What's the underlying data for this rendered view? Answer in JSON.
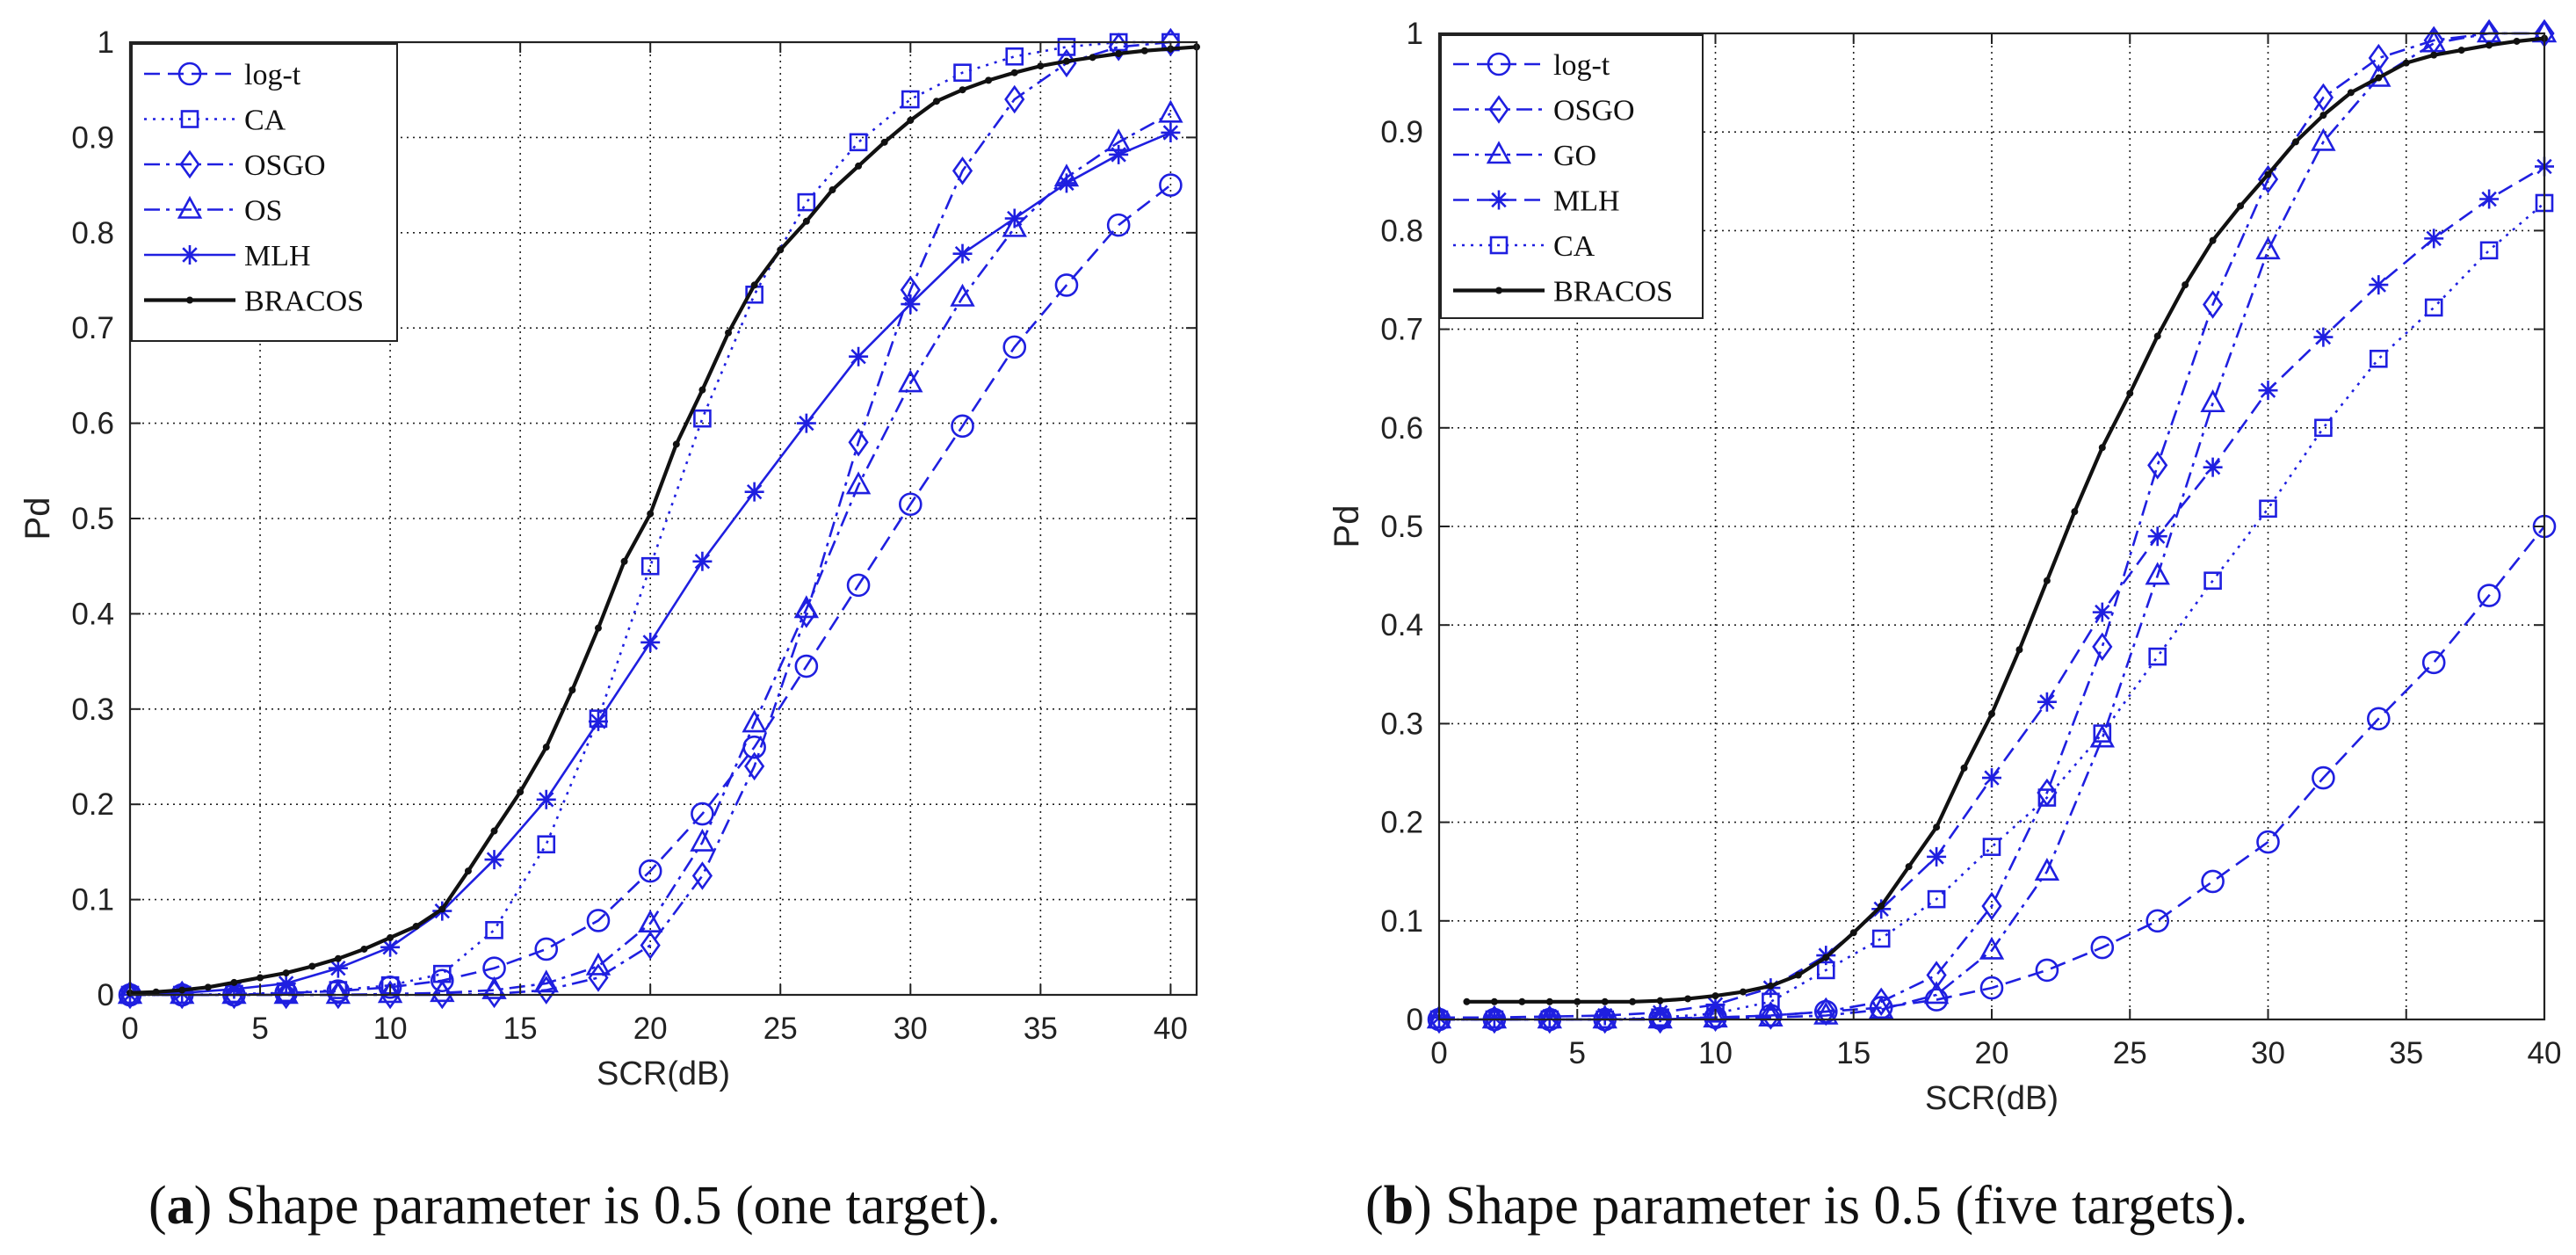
{
  "chart_data": [
    {
      "type": "line",
      "caption": {
        "label": "a",
        "text": " Shape parameter is 0.5 (one target)."
      },
      "xlabel": "SCR(dB)",
      "ylabel": "Pd",
      "xlim": [
        0,
        41
      ],
      "ylim": [
        0,
        1
      ],
      "xticks": [
        0,
        5,
        10,
        15,
        20,
        25,
        30,
        35,
        40
      ],
      "yticks": [
        0,
        0.1,
        0.2,
        0.3,
        0.4,
        0.5,
        0.6,
        0.7,
        0.8,
        0.9,
        1
      ],
      "grid": true,
      "legend_position": "top-left",
      "series": [
        {
          "name": "log-t",
          "marker": "circle",
          "dash": "dashed",
          "color": "#1f1fe0",
          "x": [
            0,
            2,
            4,
            6,
            8,
            10,
            12,
            14,
            16,
            18,
            20,
            22,
            24,
            26,
            28,
            30,
            32,
            34,
            36,
            38,
            40
          ],
          "y": [
            0,
            0,
            0,
            0.002,
            0.004,
            0.008,
            0.015,
            0.028,
            0.048,
            0.078,
            0.13,
            0.19,
            0.26,
            0.345,
            0.43,
            0.515,
            0.597,
            0.68,
            0.745,
            0.808,
            0.85
          ]
        },
        {
          "name": "CA",
          "marker": "square",
          "dash": "dotted",
          "color": "#1f1fe0",
          "x": [
            0,
            2,
            4,
            6,
            8,
            10,
            12,
            14,
            16,
            18,
            20,
            22,
            24,
            26,
            28,
            30,
            32,
            34,
            36,
            38,
            40
          ],
          "y": [
            0,
            0,
            0.001,
            0.002,
            0.005,
            0.01,
            0.022,
            0.068,
            0.158,
            0.29,
            0.45,
            0.605,
            0.735,
            0.832,
            0.895,
            0.94,
            0.968,
            0.985,
            0.995,
            1,
            1
          ]
        },
        {
          "name": "OSGO",
          "marker": "diamond",
          "dash": "dashdot",
          "color": "#1f1fe0",
          "x": [
            0,
            2,
            4,
            6,
            8,
            10,
            12,
            14,
            16,
            18,
            20,
            22,
            24,
            26,
            28,
            30,
            32,
            34,
            36,
            38,
            40
          ],
          "y": [
            0,
            0,
            0,
            0,
            0,
            0,
            0,
            0.001,
            0.005,
            0.018,
            0.052,
            0.125,
            0.24,
            0.4,
            0.58,
            0.74,
            0.865,
            0.94,
            0.978,
            0.995,
            1
          ]
        },
        {
          "name": "OS",
          "marker": "triangle",
          "dash": "dashdot",
          "color": "#1f1fe0",
          "x": [
            0,
            2,
            4,
            6,
            8,
            10,
            12,
            14,
            16,
            18,
            20,
            22,
            24,
            26,
            28,
            30,
            32,
            34,
            36,
            38,
            40
          ],
          "y": [
            0,
            0,
            0,
            0,
            0,
            0.001,
            0.002,
            0.005,
            0.012,
            0.03,
            0.075,
            0.16,
            0.285,
            0.405,
            0.535,
            0.642,
            0.732,
            0.805,
            0.858,
            0.895,
            0.925
          ]
        },
        {
          "name": "MLH",
          "marker": "star",
          "dash": "solid",
          "color": "#1f1fe0",
          "x": [
            0,
            2,
            4,
            6,
            8,
            10,
            12,
            14,
            16,
            18,
            20,
            22,
            24,
            26,
            28,
            30,
            32,
            34,
            36,
            38,
            40
          ],
          "y": [
            0,
            0.002,
            0.006,
            0.012,
            0.028,
            0.05,
            0.088,
            0.142,
            0.205,
            0.287,
            0.37,
            0.455,
            0.528,
            0.6,
            0.67,
            0.725,
            0.778,
            0.815,
            0.852,
            0.882,
            0.905
          ]
        },
        {
          "name": "BRACOS",
          "marker": "dot",
          "dash": "solid",
          "color": "#111111",
          "x": [
            0,
            1,
            2,
            3,
            4,
            5,
            6,
            7,
            8,
            9,
            10,
            11,
            12,
            13,
            14,
            15,
            16,
            17,
            18,
            19,
            20,
            21,
            22,
            23,
            24,
            25,
            26,
            27,
            28,
            29,
            30,
            31,
            32,
            33,
            34,
            35,
            36,
            37,
            38,
            39,
            40,
            41
          ],
          "y": [
            0.002,
            0.003,
            0.005,
            0.008,
            0.013,
            0.018,
            0.023,
            0.03,
            0.038,
            0.048,
            0.06,
            0.072,
            0.09,
            0.13,
            0.172,
            0.213,
            0.26,
            0.32,
            0.385,
            0.455,
            0.505,
            0.578,
            0.635,
            0.695,
            0.745,
            0.782,
            0.812,
            0.845,
            0.87,
            0.895,
            0.918,
            0.938,
            0.95,
            0.96,
            0.968,
            0.975,
            0.98,
            0.984,
            0.988,
            0.991,
            0.993,
            0.995
          ]
        }
      ]
    },
    {
      "type": "line",
      "caption": {
        "label": "b",
        "text": " Shape parameter is 0.5 (five targets)."
      },
      "xlabel": "SCR(dB)",
      "ylabel": "Pd",
      "xlim": [
        0,
        40
      ],
      "ylim": [
        0,
        1
      ],
      "xticks": [
        0,
        5,
        10,
        15,
        20,
        25,
        30,
        35,
        40
      ],
      "yticks": [
        0,
        0.1,
        0.2,
        0.3,
        0.4,
        0.5,
        0.6,
        0.7,
        0.8,
        0.9,
        1
      ],
      "grid": true,
      "legend_position": "top-left",
      "series": [
        {
          "name": "log-t",
          "marker": "circle",
          "dash": "dashed",
          "color": "#1f1fe0",
          "x": [
            0,
            2,
            4,
            6,
            8,
            10,
            12,
            14,
            16,
            18,
            20,
            22,
            24,
            26,
            28,
            30,
            32,
            34,
            36,
            38,
            40
          ],
          "y": [
            0,
            0,
            0,
            0,
            0.001,
            0.002,
            0.004,
            0.008,
            0.012,
            0.02,
            0.032,
            0.05,
            0.073,
            0.1,
            0.14,
            0.18,
            0.245,
            0.305,
            0.362,
            0.43,
            0.5
          ]
        },
        {
          "name": "OSGO",
          "marker": "diamond",
          "dash": "dashdot",
          "color": "#1f1fe0",
          "x": [
            0,
            2,
            4,
            6,
            8,
            10,
            12,
            14,
            16,
            18,
            20,
            22,
            24,
            26,
            28,
            30,
            32,
            34,
            36,
            38,
            40
          ],
          "y": [
            0,
            0,
            0,
            0,
            0,
            0.002,
            0.004,
            0.008,
            0.018,
            0.045,
            0.115,
            0.23,
            0.378,
            0.562,
            0.725,
            0.852,
            0.935,
            0.975,
            0.993,
            1,
            1
          ]
        },
        {
          "name": "GO",
          "marker": "triangle",
          "dash": "dashdot",
          "color": "#1f1fe0",
          "x": [
            0,
            2,
            4,
            6,
            8,
            10,
            12,
            14,
            16,
            18,
            20,
            22,
            24,
            26,
            28,
            30,
            32,
            34,
            36,
            38,
            40
          ],
          "y": [
            0,
            0,
            0,
            0,
            0,
            0.001,
            0.002,
            0.004,
            0.01,
            0.025,
            0.07,
            0.15,
            0.285,
            0.45,
            0.625,
            0.78,
            0.89,
            0.955,
            0.99,
            1,
            1
          ]
        },
        {
          "name": "MLH",
          "marker": "star",
          "dash": "dashed",
          "color": "#1f1fe0",
          "x": [
            0,
            2,
            4,
            6,
            8,
            10,
            12,
            14,
            16,
            18,
            20,
            22,
            24,
            26,
            28,
            30,
            32,
            34,
            36,
            38,
            40
          ],
          "y": [
            0.002,
            0.002,
            0.003,
            0.004,
            0.007,
            0.015,
            0.032,
            0.065,
            0.112,
            0.165,
            0.245,
            0.322,
            0.413,
            0.49,
            0.56,
            0.638,
            0.692,
            0.745,
            0.792,
            0.832,
            0.865
          ]
        },
        {
          "name": "CA",
          "marker": "square",
          "dash": "dotted",
          "color": "#1f1fe0",
          "x": [
            0,
            2,
            4,
            6,
            8,
            10,
            12,
            14,
            16,
            18,
            20,
            22,
            24,
            26,
            28,
            30,
            32,
            34,
            36,
            38,
            40
          ],
          "y": [
            0,
            0,
            0,
            0,
            0.002,
            0.006,
            0.018,
            0.05,
            0.082,
            0.122,
            0.175,
            0.225,
            0.29,
            0.368,
            0.445,
            0.518,
            0.6,
            0.67,
            0.722,
            0.78,
            0.828
          ]
        },
        {
          "name": "BRACOS",
          "marker": "dot",
          "dash": "solid",
          "color": "#111111",
          "x": [
            1,
            2,
            3,
            4,
            5,
            6,
            7,
            8,
            9,
            10,
            11,
            12,
            13,
            14,
            15,
            16,
            17,
            18,
            19,
            20,
            21,
            22,
            23,
            24,
            25,
            26,
            27,
            28,
            29,
            30,
            31,
            32,
            33,
            34,
            35,
            36,
            37,
            38,
            39,
            40
          ],
          "y": [
            0.018,
            0.018,
            0.018,
            0.018,
            0.018,
            0.018,
            0.018,
            0.019,
            0.021,
            0.024,
            0.028,
            0.034,
            0.045,
            0.063,
            0.088,
            0.115,
            0.155,
            0.195,
            0.255,
            0.31,
            0.375,
            0.445,
            0.515,
            0.58,
            0.635,
            0.693,
            0.745,
            0.79,
            0.825,
            0.857,
            0.89,
            0.917,
            0.94,
            0.955,
            0.97,
            0.978,
            0.983,
            0.988,
            0.992,
            0.995
          ]
        }
      ]
    }
  ]
}
